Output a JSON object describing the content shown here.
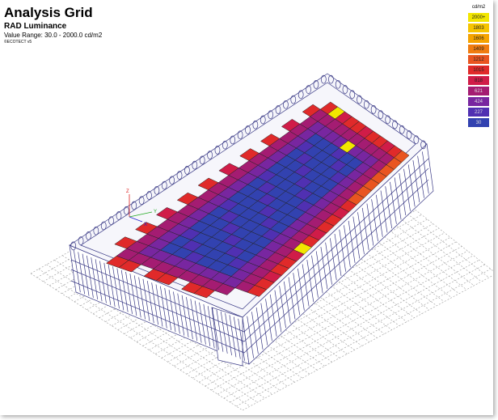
{
  "header": {
    "title": "Analysis Grid",
    "subtitle": "RAD Luminance",
    "range": "Value Range: 30.0 - 2000.0 cd/m2",
    "credit": "©ECOTECT v5"
  },
  "legend": {
    "unit": "cd/m2",
    "items": [
      {
        "label": "2000+",
        "color": "#f2e600"
      },
      {
        "label": "1803",
        "color": "#f6c400"
      },
      {
        "label": "1606",
        "color": "#f5a300"
      },
      {
        "label": "1409",
        "color": "#f07c10"
      },
      {
        "label": "1212",
        "color": "#e95520"
      },
      {
        "label": "1015",
        "color": "#e02a2a"
      },
      {
        "label": "818",
        "color": "#d01c48"
      },
      {
        "label": "621",
        "color": "#a41c72"
      },
      {
        "label": "424",
        "color": "#7826a0"
      },
      {
        "label": "227",
        "color": "#5030b2"
      },
      {
        "label": "30",
        "color": "#3242b0"
      }
    ]
  },
  "axes": {
    "z": "Z",
    "y": "Y",
    "x": "X"
  }
}
